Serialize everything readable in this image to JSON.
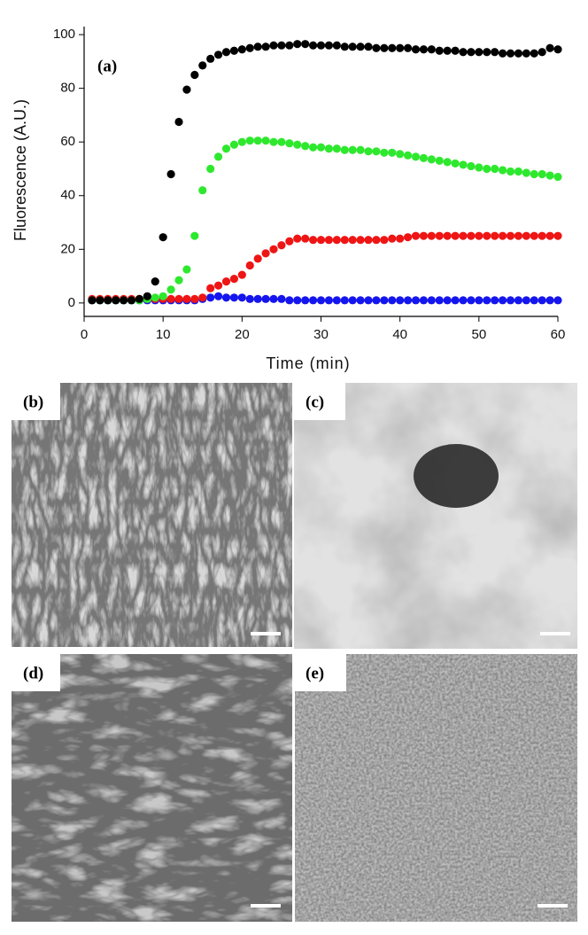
{
  "chart_data": {
    "type": "scatter",
    "annotation": "(a)",
    "x_label": "Time (min)",
    "y_label": "Fluorescence (A.U.)",
    "x": [
      1,
      2,
      3,
      4,
      5,
      6,
      7,
      8,
      9,
      10,
      11,
      12,
      13,
      14,
      15,
      16,
      17,
      18,
      19,
      20,
      21,
      22,
      23,
      24,
      25,
      26,
      27,
      28,
      29,
      30,
      31,
      32,
      33,
      34,
      35,
      36,
      37,
      38,
      39,
      40,
      41,
      42,
      43,
      44,
      45,
      46,
      47,
      48,
      49,
      50,
      51,
      52,
      53,
      54,
      55,
      56,
      57,
      58,
      59,
      60
    ],
    "series": [
      {
        "color": "#000000",
        "values": [
          1,
          1,
          1,
          1,
          1,
          1,
          1.5,
          2.5,
          8,
          24.5,
          48,
          67.5,
          79.5,
          85,
          88.5,
          91,
          92.5,
          93.5,
          94,
          94.5,
          95,
          95.5,
          95.5,
          96,
          96,
          96,
          96.5,
          96.5,
          96,
          96,
          96,
          96,
          95.5,
          95.5,
          95.5,
          95.5,
          95,
          95,
          95,
          95,
          95,
          94.5,
          94.5,
          94.5,
          94,
          94,
          94,
          93.5,
          93.5,
          93.5,
          93.5,
          93.5,
          93,
          93,
          93,
          93,
          93,
          93.5,
          95,
          94.5
        ]
      },
      {
        "color": "#2ee82e",
        "values": [
          1,
          1,
          1,
          1,
          1,
          1,
          1,
          1.5,
          2,
          2.5,
          5,
          8.5,
          12.5,
          25,
          42,
          50,
          54.5,
          57.5,
          59,
          60,
          60.5,
          60.5,
          60.5,
          60,
          60,
          59.5,
          59,
          58.5,
          58,
          58,
          57.5,
          57.5,
          57,
          57,
          57,
          56.5,
          56.5,
          56,
          56,
          55.5,
          55,
          54.5,
          54,
          53.5,
          53,
          52.5,
          52,
          51.5,
          51,
          50.5,
          50,
          50,
          49.5,
          49,
          49,
          48.5,
          48,
          48,
          47.5,
          47
        ]
      },
      {
        "color": "#ee1515",
        "values": [
          1.5,
          1.5,
          1.5,
          1.5,
          1.5,
          1.5,
          1.5,
          1.5,
          1.5,
          1.5,
          1.5,
          1.5,
          1.5,
          1.5,
          2,
          5.5,
          6.5,
          8,
          9,
          10.5,
          14,
          16.5,
          18.5,
          20,
          21.5,
          23,
          24,
          24,
          23.5,
          23.5,
          23.5,
          23.5,
          23.5,
          23.5,
          23.5,
          23.5,
          23.5,
          23.5,
          24,
          24,
          24.5,
          25,
          25,
          25,
          25,
          25,
          25,
          25,
          25,
          25,
          25,
          25,
          25,
          25,
          25,
          25,
          25,
          25,
          25,
          25
        ]
      },
      {
        "color": "#1515ee",
        "values": [
          1,
          1,
          1,
          1,
          1,
          1,
          1,
          1,
          1,
          1,
          1,
          1,
          1,
          1,
          1.5,
          2,
          2.5,
          2,
          2,
          2,
          1.5,
          1.5,
          1.5,
          1.5,
          1.5,
          1,
          1,
          1,
          1,
          1,
          1,
          1,
          1,
          1,
          1,
          1,
          1,
          1,
          1,
          1,
          1,
          1,
          1,
          1,
          1,
          1,
          1,
          1,
          1,
          1,
          1,
          1,
          1,
          1,
          1,
          1,
          1,
          1,
          1,
          1
        ]
      }
    ],
    "xlim": [
      0,
      60
    ],
    "ylim": [
      -5,
      103
    ],
    "xticks": [
      0,
      10,
      20,
      30,
      40,
      50,
      60
    ],
    "yticks": [
      0,
      20,
      40,
      60,
      80,
      100
    ]
  },
  "panels": {
    "labels": [
      "(b)",
      "(c)",
      "(d)",
      "(e)"
    ]
  }
}
